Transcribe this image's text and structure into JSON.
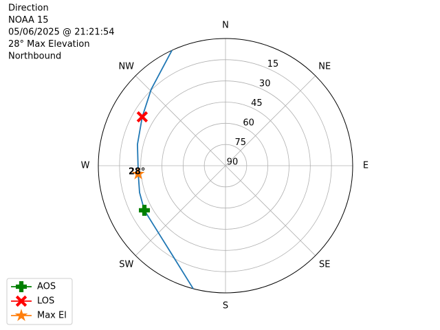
{
  "chart_data": {
    "type": "polar",
    "title_lines": [
      "Direction",
      "NOAA 15",
      "05/06/2025 @ 21:21:54",
      "28° Max Elevation",
      "Northbound"
    ],
    "thetaticks": [
      {
        "value": 0,
        "label": "N"
      },
      {
        "value": 45,
        "label": "NE"
      },
      {
        "value": 90,
        "label": "E"
      },
      {
        "value": 135,
        "label": "SE"
      },
      {
        "value": 180,
        "label": "S"
      },
      {
        "value": 225,
        "label": "SW"
      },
      {
        "value": 270,
        "label": "W"
      },
      {
        "value": 315,
        "label": "NW"
      }
    ],
    "rlim": [
      90,
      0
    ],
    "rticks": [
      15,
      30,
      45,
      60,
      75,
      90
    ],
    "grid": true,
    "legend": "lower left",
    "series": [
      {
        "color": "#1f77b4",
        "marker": "none",
        "azimuth": [
          194.7,
          211.2,
          229.2,
          241.2,
          252.7,
          264.6,
          283.6,
          300.4,
          315.8,
          335.1
        ],
        "elevation": [
          0,
          16.7,
          23.8,
          24.5,
          26.3,
          28,
          25.9,
          21.7,
          14.6,
          0
        ]
      },
      {
        "name": "AOS",
        "color": "#008000",
        "marker": "plus",
        "azimuth": [
          241.2
        ],
        "elevation": [
          24.5
        ]
      },
      {
        "name": "LOS",
        "color": "#ff0000",
        "marker": "x",
        "azimuth": [
          300.4
        ],
        "elevation": [
          21.7
        ]
      },
      {
        "name": "Max El",
        "color": "#ff7f0e",
        "marker": "star",
        "azimuth": [
          264.6
        ],
        "elevation": [
          28
        ],
        "point_label": "28°"
      }
    ]
  }
}
